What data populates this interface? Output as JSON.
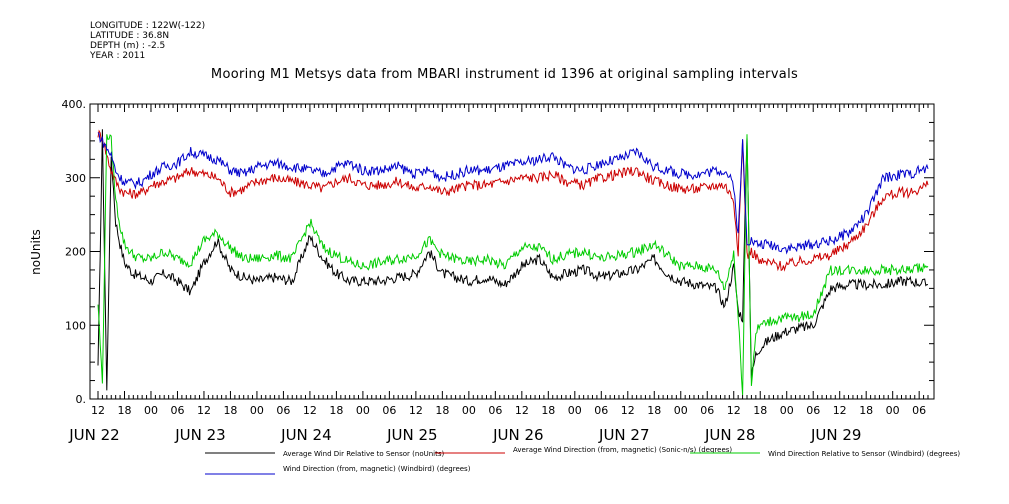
{
  "meta": {
    "longitude": "LONGITUDE : 122W(-122)",
    "latitude": "LATITUDE : 36.8N",
    "depth": "DEPTH (m) : -2.5",
    "year": "YEAR : 2011"
  },
  "chart_data": {
    "type": "line",
    "title": "Mooring M1 Metsys data from MBARI instrument id 1396 at original sampling intervals",
    "ylabel": "noUnits",
    "xlabel": "",
    "ylim": [
      0,
      400
    ],
    "yticks": [
      0,
      100,
      200,
      300,
      400
    ],
    "ytick_labels": [
      "0.",
      "100",
      "200",
      "300",
      "400."
    ],
    "xlim_hours": [
      0,
      188
    ],
    "x_ticks": [
      {
        "h": 0,
        "label": "12"
      },
      {
        "h": 6,
        "label": "18"
      },
      {
        "h": 12,
        "label": "00"
      },
      {
        "h": 18,
        "label": "06"
      },
      {
        "h": 24,
        "label": "12"
      },
      {
        "h": 30,
        "label": "18"
      },
      {
        "h": 36,
        "label": "00"
      },
      {
        "h": 42,
        "label": "06"
      },
      {
        "h": 48,
        "label": "12"
      },
      {
        "h": 54,
        "label": "18"
      },
      {
        "h": 60,
        "label": "00"
      },
      {
        "h": 66,
        "label": "06"
      },
      {
        "h": 72,
        "label": "12"
      },
      {
        "h": 78,
        "label": "18"
      },
      {
        "h": 84,
        "label": "00"
      },
      {
        "h": 90,
        "label": "06"
      },
      {
        "h": 96,
        "label": "12"
      },
      {
        "h": 102,
        "label": "18"
      },
      {
        "h": 108,
        "label": "00"
      },
      {
        "h": 114,
        "label": "06"
      },
      {
        "h": 120,
        "label": "12"
      },
      {
        "h": 126,
        "label": "18"
      },
      {
        "h": 132,
        "label": "00"
      },
      {
        "h": 138,
        "label": "06"
      },
      {
        "h": 144,
        "label": "12"
      },
      {
        "h": 150,
        "label": "18"
      },
      {
        "h": 156,
        "label": "00"
      },
      {
        "h": 162,
        "label": "06"
      },
      {
        "h": 168,
        "label": "12"
      },
      {
        "h": 174,
        "label": "18"
      },
      {
        "h": 180,
        "label": "00"
      },
      {
        "h": 186,
        "label": "06"
      }
    ],
    "date_labels": [
      {
        "h": 6,
        "label": "JUN 22"
      },
      {
        "h": 30,
        "label": "JUN 23"
      },
      {
        "h": 54,
        "label": "JUN 24"
      },
      {
        "h": 78,
        "label": "JUN 25"
      },
      {
        "h": 102,
        "label": "JUN 26"
      },
      {
        "h": 126,
        "label": "JUN 27"
      },
      {
        "h": 150,
        "label": "JUN 28"
      },
      {
        "h": 174,
        "label": "JUN 29"
      }
    ],
    "series": [
      {
        "name": "Average Wind Dir Relative to Sensor (noUnits)",
        "color": "#000000",
        "x": [
          0,
          1,
          2,
          3,
          4,
          5,
          6,
          8,
          10,
          12,
          15,
          18,
          21,
          24,
          27,
          30,
          33,
          36,
          40,
          44,
          48,
          51,
          54,
          57,
          60,
          64,
          68,
          72,
          75,
          78,
          81,
          84,
          88,
          92,
          96,
          100,
          103,
          106,
          110,
          114,
          118,
          122,
          126,
          129,
          132,
          136,
          140,
          142,
          144,
          145,
          146,
          147,
          148,
          149,
          150,
          152,
          155,
          158,
          162,
          166,
          170,
          174,
          178,
          182,
          184,
          186,
          188
        ],
        "values": [
          40,
          360,
          10,
          330,
          240,
          210,
          185,
          170,
          165,
          160,
          170,
          160,
          145,
          185,
          215,
          175,
          165,
          160,
          165,
          160,
          220,
          190,
          170,
          160,
          160,
          160,
          165,
          170,
          200,
          170,
          165,
          160,
          165,
          155,
          180,
          190,
          165,
          170,
          175,
          165,
          170,
          175,
          190,
          170,
          160,
          155,
          150,
          125,
          180,
          120,
          110,
          360,
          30,
          60,
          70,
          80,
          90,
          95,
          100,
          150,
          155,
          155,
          155,
          160,
          160,
          158,
          155
        ]
      },
      {
        "name": "Average Wind Direction (from, magnetic) (Sonic-n/s) (degrees)",
        "color": "#cc0000",
        "x": [
          0,
          1,
          2,
          3,
          4,
          5,
          6,
          8,
          10,
          12,
          15,
          18,
          21,
          24,
          27,
          30,
          33,
          36,
          40,
          44,
          48,
          51,
          54,
          57,
          60,
          64,
          68,
          72,
          75,
          78,
          81,
          84,
          88,
          92,
          96,
          100,
          103,
          106,
          110,
          114,
          118,
          122,
          126,
          129,
          132,
          136,
          140,
          142,
          144,
          145,
          146,
          147,
          148,
          149,
          150,
          152,
          155,
          158,
          162,
          166,
          170,
          174,
          178,
          182,
          184,
          186,
          188
        ],
        "values": [
          360,
          355,
          330,
          310,
          295,
          285,
          280,
          278,
          280,
          290,
          295,
          300,
          310,
          305,
          300,
          280,
          285,
          295,
          300,
          295,
          290,
          285,
          295,
          300,
          290,
          290,
          295,
          285,
          290,
          280,
          285,
          290,
          290,
          295,
          300,
          300,
          305,
          295,
          290,
          300,
          305,
          310,
          295,
          290,
          285,
          285,
          290,
          290,
          270,
          200,
          350,
          195,
          200,
          195,
          185,
          185,
          180,
          185,
          190,
          195,
          210,
          235,
          275,
          280,
          280,
          285,
          290
        ]
      },
      {
        "name": "Wind Direction Relative to Sensor (Windbird) (degrees)",
        "color": "#00cc00",
        "x": [
          0,
          1,
          2,
          3,
          4,
          5,
          6,
          8,
          10,
          12,
          15,
          18,
          21,
          24,
          27,
          30,
          33,
          36,
          40,
          44,
          48,
          51,
          54,
          57,
          60,
          64,
          68,
          72,
          75,
          78,
          81,
          84,
          88,
          92,
          96,
          100,
          103,
          106,
          110,
          114,
          118,
          122,
          126,
          129,
          132,
          136,
          140,
          142,
          144,
          145,
          146,
          147,
          148,
          149,
          150,
          152,
          155,
          158,
          162,
          166,
          170,
          174,
          178,
          182,
          184,
          186,
          188
        ],
        "values": [
          130,
          20,
          360,
          350,
          270,
          235,
          210,
          195,
          190,
          190,
          200,
          190,
          185,
          215,
          225,
          205,
          190,
          190,
          195,
          190,
          240,
          205,
          195,
          185,
          180,
          185,
          190,
          195,
          215,
          195,
          190,
          185,
          190,
          180,
          205,
          205,
          190,
          195,
          200,
          190,
          195,
          200,
          210,
          195,
          180,
          180,
          175,
          150,
          200,
          110,
          10,
          360,
          20,
          90,
          100,
          105,
          110,
          110,
          115,
          175,
          175,
          175,
          175,
          175,
          175,
          178,
          180
        ]
      },
      {
        "name": "Wind Direction (from, magnetic) (Windbird) (degrees)",
        "color": "#0000cc",
        "x": [
          0,
          1,
          2,
          3,
          4,
          5,
          6,
          8,
          10,
          12,
          15,
          18,
          21,
          24,
          27,
          30,
          33,
          36,
          40,
          44,
          48,
          51,
          54,
          57,
          60,
          64,
          68,
          72,
          75,
          78,
          81,
          84,
          88,
          92,
          96,
          100,
          103,
          106,
          110,
          114,
          118,
          122,
          126,
          129,
          132,
          136,
          140,
          142,
          144,
          145,
          146,
          147,
          148,
          149,
          150,
          152,
          155,
          158,
          162,
          166,
          170,
          174,
          178,
          182,
          184,
          186,
          188
        ],
        "values": [
          360,
          350,
          340,
          330,
          310,
          300,
          295,
          292,
          295,
          305,
          315,
          320,
          335,
          330,
          325,
          310,
          305,
          315,
          320,
          315,
          310,
          305,
          315,
          320,
          310,
          310,
          315,
          305,
          310,
          300,
          305,
          310,
          310,
          315,
          320,
          325,
          330,
          315,
          310,
          320,
          325,
          335,
          315,
          310,
          305,
          305,
          310,
          310,
          290,
          220,
          350,
          215,
          215,
          210,
          210,
          210,
          205,
          205,
          210,
          215,
          225,
          250,
          300,
          305,
          305,
          310,
          312
        ]
      }
    ],
    "legend_placement": "bottom",
    "grid": false
  }
}
